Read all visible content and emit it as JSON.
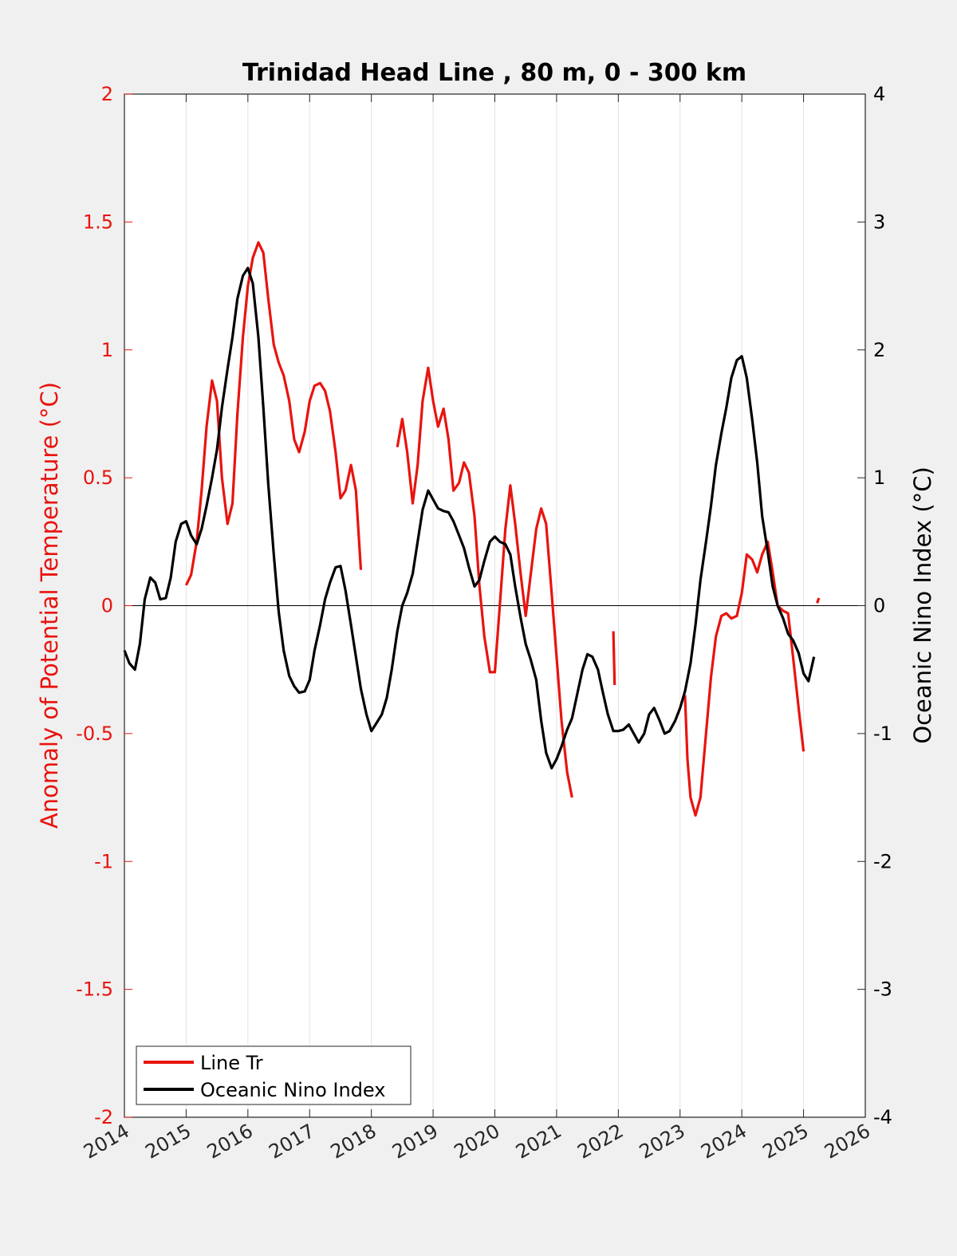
{
  "chart_data": {
    "type": "line",
    "title": "Trinidad Head Line , 80 m, 0 - 300 km",
    "ylabel_left": "Anomaly of Potential Temperature (°C)",
    "ylabel_right": "Oceanic Nino Index (°C)",
    "xlim": [
      2014,
      2026
    ],
    "ylim_left": [
      -2,
      2
    ],
    "ylim_right": [
      -4,
      4
    ],
    "x_ticks": [
      2014,
      2015,
      2016,
      2017,
      2018,
      2019,
      2020,
      2021,
      2022,
      2023,
      2024,
      2025,
      2026
    ],
    "x_tick_labels": [
      "2014",
      "2015",
      "2016",
      "2017",
      "2018",
      "2019",
      "2020",
      "2021",
      "2022",
      "2023",
      "2024",
      "2025",
      "2026"
    ],
    "y_left_ticks": [
      2,
      1.5,
      1,
      0.5,
      0,
      -0.5,
      -1,
      -1.5,
      -2
    ],
    "y_left_tick_labels": [
      "2",
      "1.5",
      "1",
      "0.5",
      "0",
      "-0.5",
      "-1",
      "-1.5",
      "-2"
    ],
    "y_right_ticks": [
      4,
      3,
      2,
      1,
      0,
      -1,
      -2,
      -3,
      -4
    ],
    "y_right_tick_labels": [
      "4",
      "3",
      "2",
      "1",
      "0",
      "-1",
      "-2",
      "-3",
      "-4"
    ],
    "grid": "vertical",
    "legend_position": "bottom-left",
    "left_axis_color": "#e8140f",
    "right_axis_color": "#000000",
    "series": [
      {
        "name": "Line Tr",
        "axis": "left",
        "color": "#e8140f",
        "segments": [
          [
            [
              2015.0,
              0.08
            ],
            [
              2015.08,
              0.12
            ],
            [
              2015.17,
              0.25
            ],
            [
              2015.25,
              0.45
            ],
            [
              2015.33,
              0.7
            ],
            [
              2015.42,
              0.88
            ],
            [
              2015.5,
              0.8
            ],
            [
              2015.58,
              0.5
            ],
            [
              2015.67,
              0.32
            ],
            [
              2015.75,
              0.4
            ],
            [
              2015.83,
              0.75
            ],
            [
              2015.92,
              1.05
            ],
            [
              2016.0,
              1.25
            ],
            [
              2016.08,
              1.36
            ],
            [
              2016.17,
              1.42
            ],
            [
              2016.25,
              1.38
            ],
            [
              2016.33,
              1.2
            ],
            [
              2016.42,
              1.02
            ],
            [
              2016.5,
              0.95
            ],
            [
              2016.58,
              0.9
            ],
            [
              2016.67,
              0.8
            ],
            [
              2016.75,
              0.65
            ],
            [
              2016.83,
              0.6
            ],
            [
              2016.92,
              0.68
            ],
            [
              2017.0,
              0.8
            ],
            [
              2017.08,
              0.86
            ],
            [
              2017.17,
              0.87
            ],
            [
              2017.25,
              0.84
            ],
            [
              2017.33,
              0.76
            ],
            [
              2017.42,
              0.6
            ],
            [
              2017.5,
              0.42
            ],
            [
              2017.58,
              0.45
            ],
            [
              2017.67,
              0.55
            ],
            [
              2017.75,
              0.45
            ],
            [
              2017.83,
              0.14
            ]
          ],
          [
            [
              2018.42,
              0.62
            ],
            [
              2018.5,
              0.73
            ],
            [
              2018.58,
              0.6
            ],
            [
              2018.67,
              0.4
            ],
            [
              2018.75,
              0.55
            ],
            [
              2018.83,
              0.8
            ],
            [
              2018.92,
              0.93
            ],
            [
              2019.0,
              0.8
            ],
            [
              2019.08,
              0.7
            ],
            [
              2019.17,
              0.77
            ],
            [
              2019.25,
              0.65
            ],
            [
              2019.33,
              0.45
            ],
            [
              2019.42,
              0.48
            ],
            [
              2019.5,
              0.56
            ],
            [
              2019.58,
              0.52
            ],
            [
              2019.67,
              0.35
            ],
            [
              2019.75,
              0.08
            ],
            [
              2019.83,
              -0.12
            ],
            [
              2019.92,
              -0.26
            ],
            [
              2020.0,
              -0.26
            ],
            [
              2020.08,
              0.0
            ],
            [
              2020.17,
              0.3
            ],
            [
              2020.25,
              0.47
            ],
            [
              2020.33,
              0.32
            ],
            [
              2020.42,
              0.12
            ],
            [
              2020.5,
              -0.04
            ],
            [
              2020.58,
              0.12
            ],
            [
              2020.67,
              0.3
            ],
            [
              2020.75,
              0.38
            ],
            [
              2020.83,
              0.32
            ],
            [
              2020.92,
              0.05
            ],
            [
              2021.0,
              -0.2
            ],
            [
              2021.08,
              -0.45
            ],
            [
              2021.17,
              -0.65
            ],
            [
              2021.25,
              -0.75
            ]
          ],
          [
            [
              2021.92,
              -0.1
            ],
            [
              2021.94,
              -0.31
            ]
          ],
          [
            [
              2023.08,
              -0.35
            ],
            [
              2023.12,
              -0.6
            ],
            [
              2023.17,
              -0.75
            ],
            [
              2023.25,
              -0.82
            ],
            [
              2023.33,
              -0.75
            ],
            [
              2023.42,
              -0.5
            ],
            [
              2023.5,
              -0.28
            ],
            [
              2023.58,
              -0.12
            ],
            [
              2023.67,
              -0.04
            ],
            [
              2023.75,
              -0.03
            ],
            [
              2023.83,
              -0.05
            ],
            [
              2023.92,
              -0.04
            ],
            [
              2024.0,
              0.05
            ],
            [
              2024.08,
              0.2
            ],
            [
              2024.17,
              0.18
            ],
            [
              2024.25,
              0.13
            ],
            [
              2024.33,
              0.2
            ],
            [
              2024.42,
              0.25
            ],
            [
              2024.5,
              0.13
            ],
            [
              2024.58,
              0.0
            ],
            [
              2024.67,
              -0.02
            ],
            [
              2024.75,
              -0.03
            ],
            [
              2024.83,
              -0.2
            ],
            [
              2024.92,
              -0.4
            ],
            [
              2025.0,
              -0.57
            ]
          ],
          [
            [
              2025.22,
              0.01
            ],
            [
              2025.25,
              0.03
            ]
          ]
        ]
      },
      {
        "name": "Oceanic Nino Index",
        "axis": "right",
        "color": "#000000",
        "segments": [
          [
            [
              2014.0,
              -0.35
            ],
            [
              2014.08,
              -0.45
            ],
            [
              2014.17,
              -0.5
            ],
            [
              2014.25,
              -0.3
            ],
            [
              2014.33,
              0.05
            ],
            [
              2014.42,
              0.22
            ],
            [
              2014.5,
              0.18
            ],
            [
              2014.58,
              0.05
            ],
            [
              2014.67,
              0.06
            ],
            [
              2014.75,
              0.22
            ],
            [
              2014.83,
              0.5
            ],
            [
              2014.92,
              0.64
            ],
            [
              2015.0,
              0.66
            ],
            [
              2015.08,
              0.55
            ],
            [
              2015.17,
              0.48
            ],
            [
              2015.25,
              0.6
            ],
            [
              2015.33,
              0.78
            ],
            [
              2015.42,
              1.0
            ],
            [
              2015.5,
              1.22
            ],
            [
              2015.58,
              1.55
            ],
            [
              2015.67,
              1.85
            ],
            [
              2015.75,
              2.1
            ],
            [
              2015.83,
              2.4
            ],
            [
              2015.92,
              2.58
            ],
            [
              2016.0,
              2.64
            ],
            [
              2016.08,
              2.52
            ],
            [
              2016.17,
              2.1
            ],
            [
              2016.25,
              1.55
            ],
            [
              2016.33,
              0.95
            ],
            [
              2016.42,
              0.4
            ],
            [
              2016.5,
              -0.05
            ],
            [
              2016.58,
              -0.35
            ],
            [
              2016.67,
              -0.55
            ],
            [
              2016.75,
              -0.63
            ],
            [
              2016.83,
              -0.68
            ],
            [
              2016.92,
              -0.67
            ],
            [
              2017.0,
              -0.58
            ],
            [
              2017.08,
              -0.35
            ],
            [
              2017.17,
              -0.15
            ],
            [
              2017.25,
              0.05
            ],
            [
              2017.33,
              0.18
            ],
            [
              2017.42,
              0.3
            ],
            [
              2017.5,
              0.31
            ],
            [
              2017.58,
              0.12
            ],
            [
              2017.67,
              -0.15
            ],
            [
              2017.75,
              -0.4
            ],
            [
              2017.83,
              -0.65
            ],
            [
              2017.92,
              -0.85
            ],
            [
              2018.0,
              -0.98
            ],
            [
              2018.08,
              -0.92
            ],
            [
              2018.17,
              -0.85
            ],
            [
              2018.25,
              -0.72
            ],
            [
              2018.33,
              -0.5
            ],
            [
              2018.42,
              -0.2
            ],
            [
              2018.5,
              0.0
            ],
            [
              2018.58,
              0.1
            ],
            [
              2018.67,
              0.25
            ],
            [
              2018.75,
              0.5
            ],
            [
              2018.83,
              0.75
            ],
            [
              2018.92,
              0.9
            ],
            [
              2019.0,
              0.83
            ],
            [
              2019.08,
              0.76
            ],
            [
              2019.17,
              0.74
            ],
            [
              2019.25,
              0.73
            ],
            [
              2019.33,
              0.66
            ],
            [
              2019.42,
              0.55
            ],
            [
              2019.5,
              0.45
            ],
            [
              2019.58,
              0.3
            ],
            [
              2019.67,
              0.15
            ],
            [
              2019.75,
              0.2
            ],
            [
              2019.83,
              0.35
            ],
            [
              2019.92,
              0.5
            ],
            [
              2020.0,
              0.54
            ],
            [
              2020.08,
              0.5
            ],
            [
              2020.17,
              0.48
            ],
            [
              2020.25,
              0.4
            ],
            [
              2020.33,
              0.15
            ],
            [
              2020.42,
              -0.1
            ],
            [
              2020.5,
              -0.3
            ],
            [
              2020.58,
              -0.42
            ],
            [
              2020.67,
              -0.58
            ],
            [
              2020.75,
              -0.9
            ],
            [
              2020.83,
              -1.15
            ],
            [
              2020.92,
              -1.27
            ],
            [
              2021.0,
              -1.2
            ],
            [
              2021.08,
              -1.1
            ],
            [
              2021.17,
              -0.97
            ],
            [
              2021.25,
              -0.88
            ],
            [
              2021.33,
              -0.7
            ],
            [
              2021.42,
              -0.5
            ],
            [
              2021.5,
              -0.38
            ],
            [
              2021.58,
              -0.4
            ],
            [
              2021.67,
              -0.5
            ],
            [
              2021.75,
              -0.68
            ],
            [
              2021.83,
              -0.85
            ],
            [
              2021.92,
              -0.98
            ],
            [
              2022.0,
              -0.98
            ],
            [
              2022.08,
              -0.97
            ],
            [
              2022.17,
              -0.93
            ],
            [
              2022.25,
              -1.0
            ],
            [
              2022.33,
              -1.07
            ],
            [
              2022.42,
              -1.0
            ],
            [
              2022.5,
              -0.85
            ],
            [
              2022.58,
              -0.8
            ],
            [
              2022.67,
              -0.9
            ],
            [
              2022.75,
              -1.0
            ],
            [
              2022.83,
              -0.98
            ],
            [
              2022.92,
              -0.9
            ],
            [
              2023.0,
              -0.8
            ],
            [
              2023.08,
              -0.67
            ],
            [
              2023.17,
              -0.45
            ],
            [
              2023.25,
              -0.15
            ],
            [
              2023.33,
              0.2
            ],
            [
              2023.42,
              0.5
            ],
            [
              2023.5,
              0.78
            ],
            [
              2023.58,
              1.1
            ],
            [
              2023.67,
              1.35
            ],
            [
              2023.75,
              1.55
            ],
            [
              2023.83,
              1.78
            ],
            [
              2023.92,
              1.92
            ],
            [
              2024.0,
              1.95
            ],
            [
              2024.08,
              1.78
            ],
            [
              2024.17,
              1.45
            ],
            [
              2024.25,
              1.12
            ],
            [
              2024.33,
              0.7
            ],
            [
              2024.42,
              0.42
            ],
            [
              2024.5,
              0.15
            ],
            [
              2024.58,
              0.0
            ],
            [
              2024.67,
              -0.1
            ],
            [
              2024.75,
              -0.22
            ],
            [
              2024.83,
              -0.27
            ],
            [
              2024.92,
              -0.37
            ],
            [
              2025.0,
              -0.53
            ],
            [
              2025.08,
              -0.59
            ],
            [
              2025.17,
              -0.4
            ]
          ]
        ]
      }
    ]
  }
}
